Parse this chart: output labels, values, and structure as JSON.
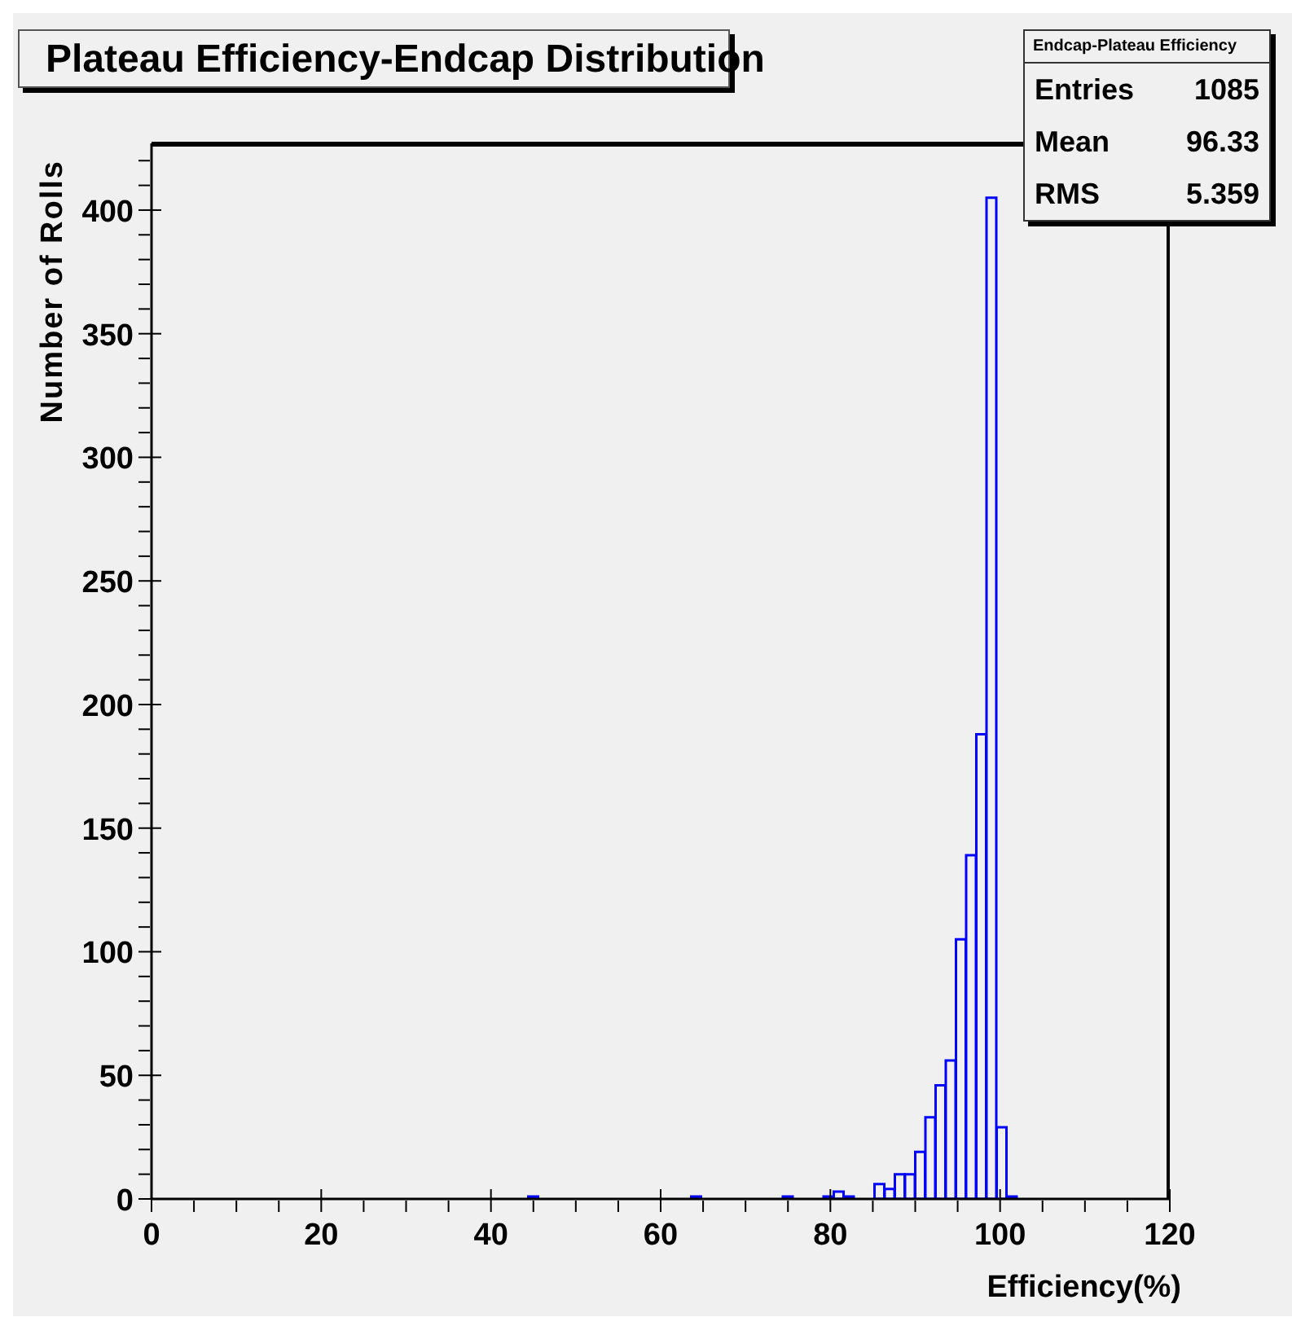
{
  "chart_data": {
    "type": "histogram",
    "title": "Plateau Efficiency-Endcap Distribution",
    "xlabel": "Efficiency(%)",
    "ylabel": "Number of Rolls",
    "bins": [
      0,
      1.2,
      2.4,
      3.6,
      4.8,
      6,
      7.2,
      8.4,
      9.6,
      10.8,
      12,
      13.2,
      14.4,
      15.6,
      16.8,
      18,
      19.2,
      20.4,
      21.6,
      22.8,
      24,
      25.2,
      26.4,
      27.6,
      28.8,
      30,
      31.2,
      32.4,
      33.6,
      34.8,
      36,
      37.2,
      38.4,
      39.6,
      40.8,
      42,
      43.2,
      44.4,
      45.6,
      46.8,
      48,
      49.2,
      50.4,
      51.6,
      52.8,
      54,
      55.2,
      56.4,
      57.6,
      58.8,
      60,
      61.2,
      62.4,
      63.6,
      64.8,
      66,
      67.2,
      68.4,
      69.6,
      70.8,
      72,
      73.2,
      74.4,
      75.6,
      76.8,
      78,
      79.2,
      80.4,
      81.6,
      82.8,
      84,
      85.2,
      86.4,
      87.6,
      88.8,
      90,
      91.2,
      92.4,
      93.6,
      94.8,
      96,
      97.2,
      98.4,
      99.6,
      100.8,
      102,
      103.2,
      104.4,
      105.6,
      106.8,
      108,
      109.2,
      110.4,
      111.6,
      112.8,
      114,
      115.2,
      116.4,
      117.6,
      118.8,
      120
    ],
    "values": [
      0,
      0,
      0,
      0,
      0,
      0,
      0,
      0,
      0,
      0,
      0,
      0,
      0,
      0,
      0,
      0,
      0,
      0,
      0,
      0,
      0,
      0,
      0,
      0,
      0,
      0,
      0,
      0,
      0,
      0,
      0,
      0,
      0,
      0,
      0,
      0,
      0,
      1,
      0,
      0,
      0,
      0,
      0,
      0,
      0,
      0,
      0,
      0,
      0,
      0,
      0,
      0,
      0,
      1,
      0,
      0,
      0,
      0,
      0,
      0,
      0,
      0,
      1,
      0,
      0,
      0,
      1,
      3,
      1,
      0,
      0,
      6,
      4,
      10,
      10,
      19,
      33,
      46,
      56,
      105,
      139,
      188,
      405,
      29,
      1,
      0,
      0,
      0,
      0,
      0,
      0,
      0,
      0,
      0,
      0,
      0,
      0,
      0,
      0,
      0
    ],
    "color": "#0000ff",
    "xlim": [
      0,
      120
    ],
    "xticks": [
      0,
      {
        "value": 5,
        "label": null
      },
      {
        "value": 10,
        "label": null
      },
      {
        "value": 15,
        "label": null
      },
      20,
      {
        "value": 25,
        "label": null
      },
      {
        "value": 30,
        "label": null
      },
      {
        "value": 35,
        "label": null
      },
      40,
      {
        "value": 45,
        "label": null
      },
      {
        "value": 50,
        "label": null
      },
      {
        "value": 55,
        "label": null
      },
      60,
      {
        "value": 65,
        "label": null
      },
      {
        "value": 70,
        "label": null
      },
      {
        "value": 75,
        "label": null
      },
      80,
      {
        "value": 85,
        "label": null
      },
      {
        "value": 90,
        "label": null
      },
      {
        "value": 95,
        "label": null
      },
      100,
      {
        "value": 105,
        "label": null
      },
      {
        "value": 110,
        "label": null
      },
      {
        "value": 115,
        "label": null
      },
      120
    ],
    "ylim": [
      0,
      427
    ],
    "yticks": [
      0,
      {
        "value": 10,
        "label": null
      },
      {
        "value": 20,
        "label": null
      },
      {
        "value": 30,
        "label": null
      },
      {
        "value": 40,
        "label": null
      },
      50,
      {
        "value": 60,
        "label": null
      },
      {
        "value": 70,
        "label": null
      },
      {
        "value": 80,
        "label": null
      },
      {
        "value": 90,
        "label": null
      },
      100,
      {
        "value": 110,
        "label": null
      },
      {
        "value": 120,
        "label": null
      },
      {
        "value": 130,
        "label": null
      },
      {
        "value": 140,
        "label": null
      },
      150,
      {
        "value": 160,
        "label": null
      },
      {
        "value": 170,
        "label": null
      },
      {
        "value": 180,
        "label": null
      },
      {
        "value": 190,
        "label": null
      },
      200,
      {
        "value": 210,
        "label": null
      },
      {
        "value": 220,
        "label": null
      },
      {
        "value": 230,
        "label": null
      },
      {
        "value": 240,
        "label": null
      },
      250,
      {
        "value": 260,
        "label": null
      },
      {
        "value": 270,
        "label": null
      },
      {
        "value": 280,
        "label": null
      },
      {
        "value": 290,
        "label": null
      },
      300,
      {
        "value": 310,
        "label": null
      },
      {
        "value": 320,
        "label": null
      },
      {
        "value": 330,
        "label": null
      },
      {
        "value": 340,
        "label": null
      },
      350,
      {
        "value": 360,
        "label": null
      },
      {
        "value": 370,
        "label": null
      },
      {
        "value": 380,
        "label": null
      },
      {
        "value": 390,
        "label": null
      },
      400,
      {
        "value": 410,
        "label": null
      },
      {
        "value": 420,
        "label": null
      }
    ],
    "annotations": [
      "Endcap-Plateau Efficiency",
      "Entries",
      "1085",
      "Mean",
      "96.33",
      "RMS",
      "5.359"
    ]
  }
}
